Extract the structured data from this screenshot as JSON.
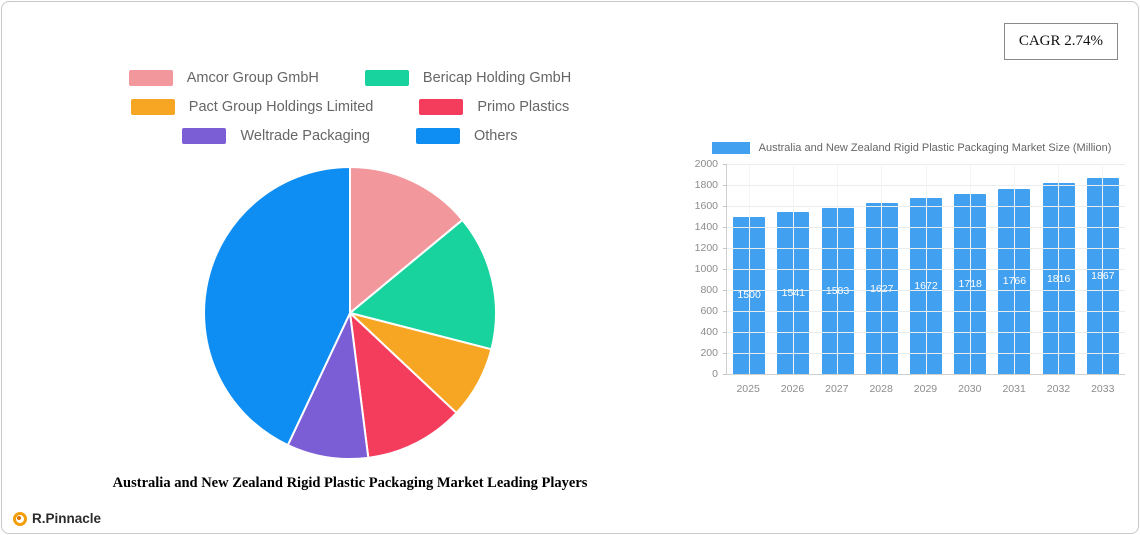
{
  "cagr_label": "CAGR 2.74%",
  "logo": {
    "text": "R.Pinnacle"
  },
  "chart_data": [
    {
      "type": "pie",
      "title": "Australia and New Zealand Rigid Plastic Packaging Market Leading Players",
      "labels": [
        "Amcor Group GmbH",
        "Bericap Holding GmbH",
        "Pact Group Holdings Limited",
        "Primo Plastics",
        "Weltrade Packaging",
        "Others"
      ],
      "values": [
        14,
        15,
        8,
        11,
        9,
        43
      ],
      "colors": [
        "#F2979C",
        "#18D39E",
        "#F6A623",
        "#F43D5D",
        "#7B5DD6",
        "#0E8EF2"
      ],
      "legend_position": "top",
      "start_angle": 0,
      "direction": "clockwise"
    },
    {
      "type": "bar",
      "title": "Australia and New Zealand Rigid Plastic Packaging Market Size (Million)",
      "categories": [
        "2025",
        "2026",
        "2027",
        "2028",
        "2029",
        "2030",
        "2031",
        "2032",
        "2033"
      ],
      "values": [
        1500,
        1541,
        1583,
        1627,
        1672,
        1718,
        1766,
        1816,
        1867
      ],
      "xlabel": "",
      "ylabel": "",
      "ylim": [
        0,
        2000
      ],
      "ytick_step": 200,
      "grid": true,
      "legend_position": "top",
      "bar_color": "#42A0F0",
      "value_label_color": "#ffffff"
    }
  ]
}
